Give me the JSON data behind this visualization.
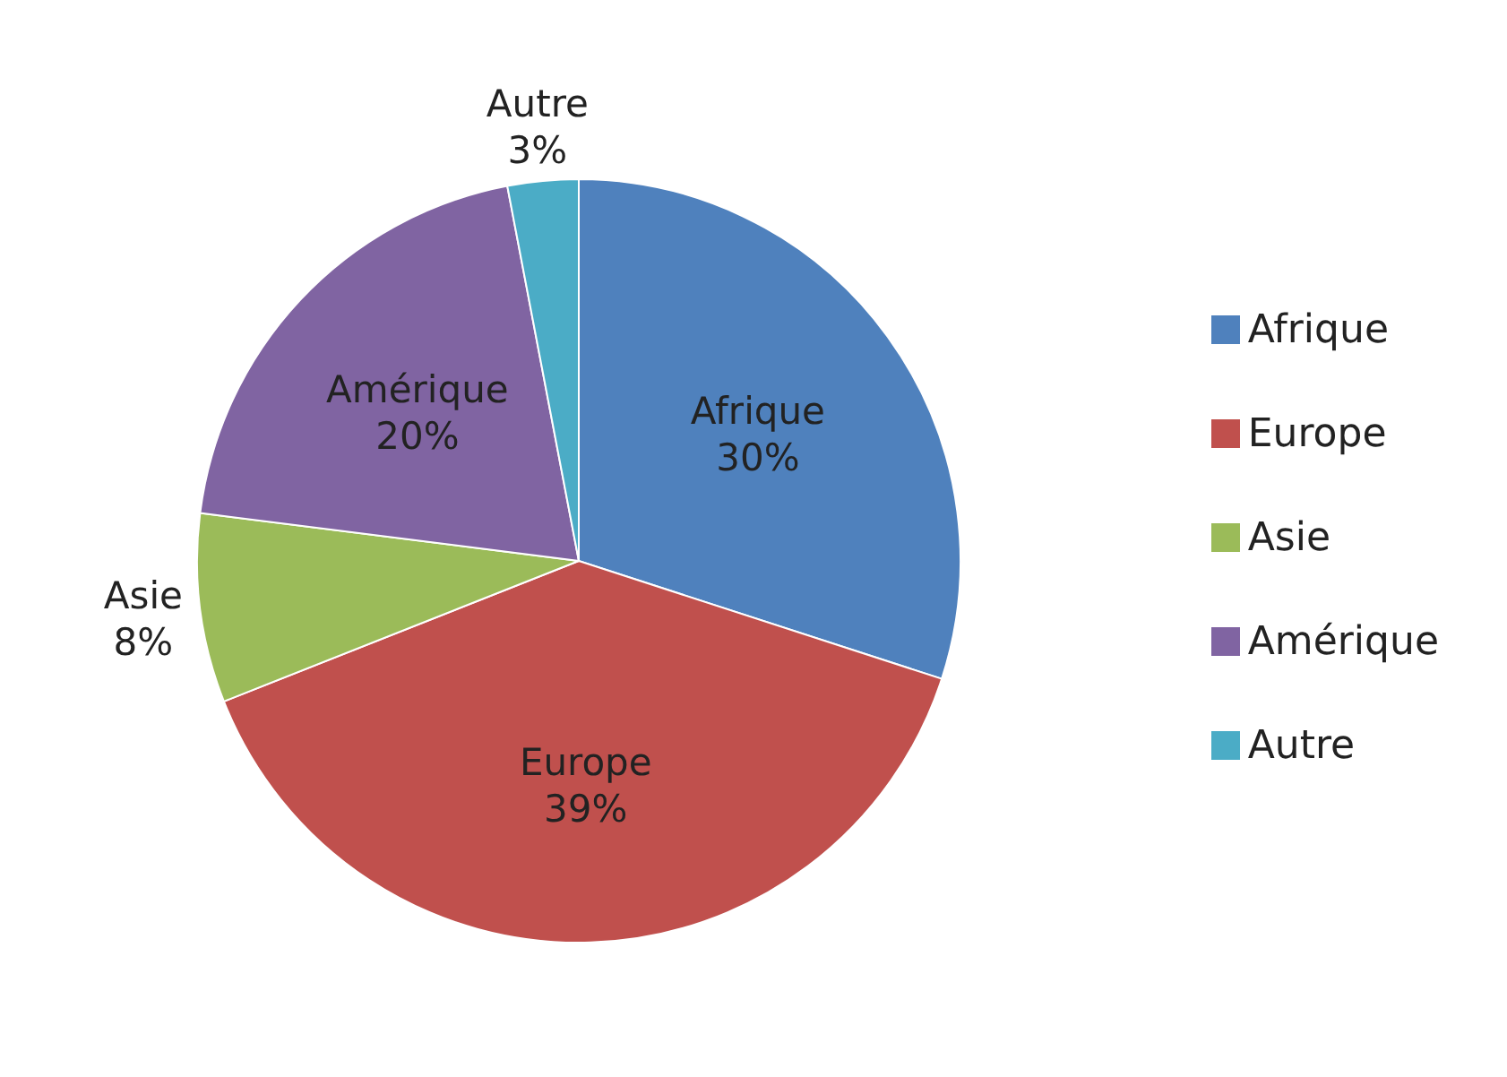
{
  "chart_data": {
    "type": "pie",
    "categories": [
      "Afrique",
      "Europe",
      "Asie",
      "Amérique",
      "Autre"
    ],
    "values": [
      30,
      39,
      8,
      20,
      3
    ],
    "colors": [
      "#4f81bd",
      "#c0504d",
      "#9bbb59",
      "#8064a2",
      "#4bacc6"
    ],
    "value_labels": [
      "30%",
      "39%",
      "8%",
      "20%",
      "3%"
    ],
    "legend": "right"
  }
}
